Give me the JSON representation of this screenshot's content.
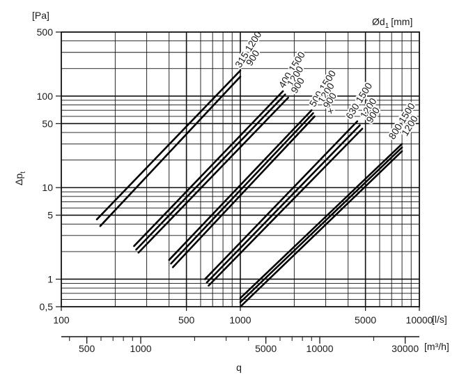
{
  "chart_data": {
    "type": "line",
    "x_scale": "log",
    "y_scale": "log",
    "xlim": [
      100,
      10000
    ],
    "ylim": [
      0.5,
      500
    ],
    "x_unit": "[l/s]",
    "x2_unit": "[m³/h]",
    "y_unit": "[Pa]",
    "ylabel": "Δp",
    "ylabel_sub": "t",
    "xlabel": "q",
    "top_right_label": "Ød",
    "top_right_sub": "1",
    "top_right_unit": "[mm]",
    "grid": true,
    "y_ticks": [
      {
        "v": 500,
        "t": "500"
      },
      {
        "v": 100,
        "t": "100"
      },
      {
        "v": 50,
        "t": "50"
      },
      {
        "v": 10,
        "t": "10"
      },
      {
        "v": 5,
        "t": "5"
      },
      {
        "v": 1,
        "t": "1"
      },
      {
        "v": 0.5,
        "t": "0,5"
      }
    ],
    "x_ticks": [
      {
        "v": 100,
        "t": "100"
      },
      {
        "v": 500,
        "t": "500"
      },
      {
        "v": 1000,
        "t": "1000"
      },
      {
        "v": 5000,
        "t": "5000"
      },
      {
        "v": 10000,
        "t": "10000"
      }
    ],
    "x2_ticks": [
      {
        "v": 500,
        "t": "500"
      },
      {
        "v": 1000,
        "t": "1000"
      },
      {
        "v": 5000,
        "t": "5000"
      },
      {
        "v": 10000,
        "t": "10000"
      },
      {
        "v": 30000,
        "t": "30000"
      }
    ],
    "x2_minor": [
      400,
      600,
      700,
      800,
      900,
      2000,
      3000,
      4000,
      6000,
      7000,
      8000,
      9000,
      20000
    ],
    "series": [
      {
        "name": "315 1200",
        "x": [
          158,
          1000
        ],
        "y": [
          4.5,
          190
        ]
      },
      {
        "name": "315 900",
        "x": [
          165,
          1000
        ],
        "y": [
          3.8,
          163
        ]
      },
      {
        "name": "400 1500",
        "x": [
          255,
          1730
        ],
        "y": [
          2.3,
          113
        ]
      },
      {
        "name": "400 1200",
        "x": [
          262,
          1780
        ],
        "y": [
          2.1,
          104
        ]
      },
      {
        "name": "400 900",
        "x": [
          270,
          1850
        ],
        "y": [
          1.95,
          96
        ]
      },
      {
        "name": "500 1500",
        "x": [
          400,
          2500
        ],
        "y": [
          1.62,
          70
        ]
      },
      {
        "name": "500 1200",
        "x": [
          410,
          2550
        ],
        "y": [
          1.48,
          65
        ]
      },
      {
        "name": "500 900",
        "x": [
          420,
          2600
        ],
        "y": [
          1.35,
          60
        ]
      },
      {
        "name": "630 1500",
        "x": [
          635,
          4500
        ],
        "y": [
          1.0,
          53
        ]
      },
      {
        "name": "630 1200",
        "x": [
          650,
          4650
        ],
        "y": [
          0.92,
          48
        ]
      },
      {
        "name": "630 900",
        "x": [
          665,
          4800
        ],
        "y": [
          0.85,
          44
        ]
      },
      {
        "name": "800 1500",
        "x": [
          1000,
          8000
        ],
        "y": [
          0.62,
          30
        ]
      },
      {
        "name": "800 1200",
        "x": [
          1000,
          8000
        ],
        "y": [
          0.56,
          27.5
        ]
      },
      {
        "name": "800 900",
        "x": [
          1000,
          8000
        ],
        "y": [
          0.5,
          25
        ]
      }
    ],
    "line_labels": [
      {
        "text": "315 1200",
        "x": 1000,
        "y": 200
      },
      {
        "text": "900",
        "x": 1150,
        "y": 210
      },
      {
        "text": "400 1500",
        "x": 1750,
        "y": 120
      },
      {
        "text": "1200",
        "x": 1950,
        "y": 125
      },
      {
        "text": "900",
        "x": 2050,
        "y": 105
      },
      {
        "text": "500 1500",
        "x": 2600,
        "y": 75
      },
      {
        "text": "1200",
        "x": 2900,
        "y": 82
      },
      {
        "text": "900",
        "x": 3100,
        "y": 72
      },
      {
        "text": "×",
        "x": 3250,
        "y": 62
      },
      {
        "text": "630 1500",
        "x": 4150,
        "y": 55
      },
      {
        "text": "1200",
        "x": 5000,
        "y": 56
      },
      {
        "text": "900",
        "x": 5400,
        "y": 50
      },
      {
        "text": "800 1500",
        "x": 7200,
        "y": 33
      },
      {
        "text": "1200",
        "x": 8500,
        "y": 36
      }
    ]
  }
}
